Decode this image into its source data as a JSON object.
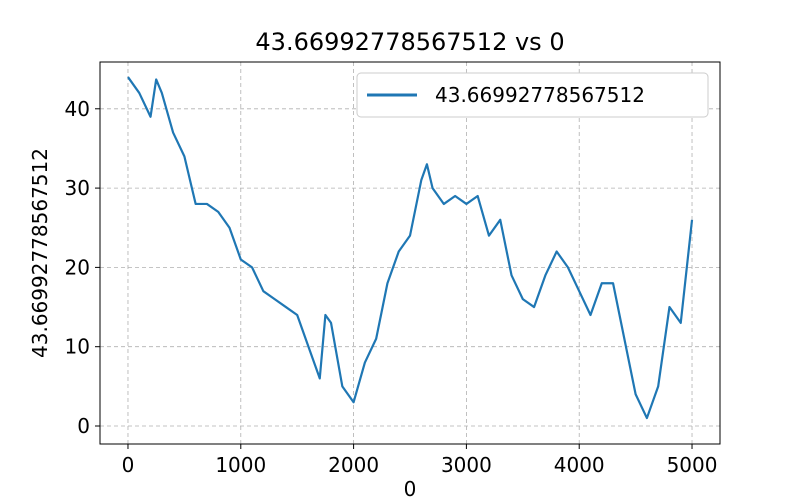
{
  "chart_data": {
    "type": "line",
    "title": "43.66992778567512 vs 0",
    "x_label": "0",
    "y_label": "43.66992778567512",
    "x": [
      0,
      100,
      200,
      250,
      300,
      400,
      500,
      600,
      700,
      800,
      900,
      1000,
      1100,
      1200,
      1300,
      1400,
      1500,
      1600,
      1700,
      1750,
      1800,
      1900,
      2000,
      2100,
      2200,
      2300,
      2400,
      2500,
      2600,
      2650,
      2700,
      2800,
      2900,
      3000,
      3100,
      3200,
      3300,
      3400,
      3500,
      3600,
      3700,
      3800,
      3900,
      4000,
      4100,
      4200,
      4300,
      4400,
      4500,
      4600,
      4700,
      4800,
      4900,
      5000
    ],
    "series": [
      {
        "name": "43.66992778567512",
        "color": "#1f77b4",
        "values": [
          44,
          42,
          39,
          43.7,
          42,
          37,
          34,
          28,
          28,
          27,
          25,
          21,
          20,
          17,
          16,
          15,
          14,
          10,
          6,
          14,
          13,
          5,
          3,
          8,
          11,
          18,
          22,
          24,
          31,
          33,
          30,
          28,
          29,
          28,
          29,
          24,
          26,
          19,
          16,
          15,
          19,
          22,
          20,
          17,
          14,
          18,
          18,
          11,
          4,
          1,
          5,
          15,
          13,
          26
        ]
      }
    ],
    "xlim": [
      -248,
      5248
    ],
    "ylim": [
      -2.27,
      45.9
    ],
    "xticks": [
      0,
      1000,
      2000,
      3000,
      4000,
      5000
    ],
    "yticks": [
      0,
      10,
      20,
      30,
      40
    ],
    "grid": true,
    "legend": "upper right"
  }
}
